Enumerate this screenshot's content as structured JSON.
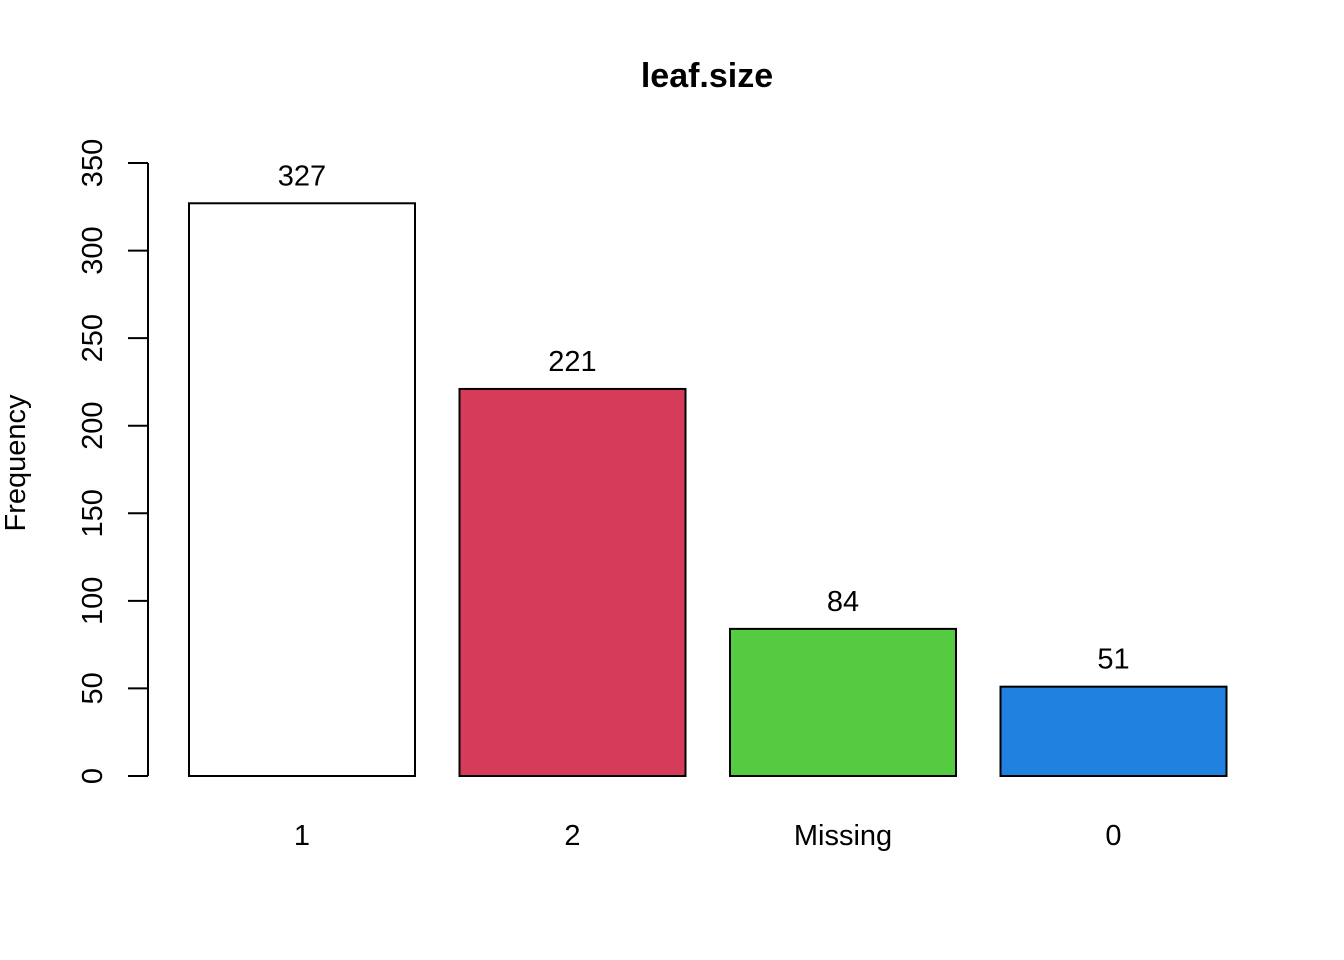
{
  "chart_data": {
    "type": "bar",
    "title": "leaf.size",
    "xlabel": "",
    "ylabel": "Frequency",
    "categories": [
      "1",
      "2",
      "Missing",
      "0"
    ],
    "values": [
      327,
      221,
      84,
      51
    ],
    "data_labels": [
      "327",
      "221",
      "84",
      "51"
    ],
    "colors": [
      "#ffffff",
      "#d63c5a",
      "#54cb40",
      "#2181e0"
    ],
    "ylim": [
      0,
      350
    ],
    "yticks": [
      0,
      50,
      100,
      150,
      200,
      250,
      300,
      350
    ],
    "grid": false,
    "legend": "none"
  }
}
